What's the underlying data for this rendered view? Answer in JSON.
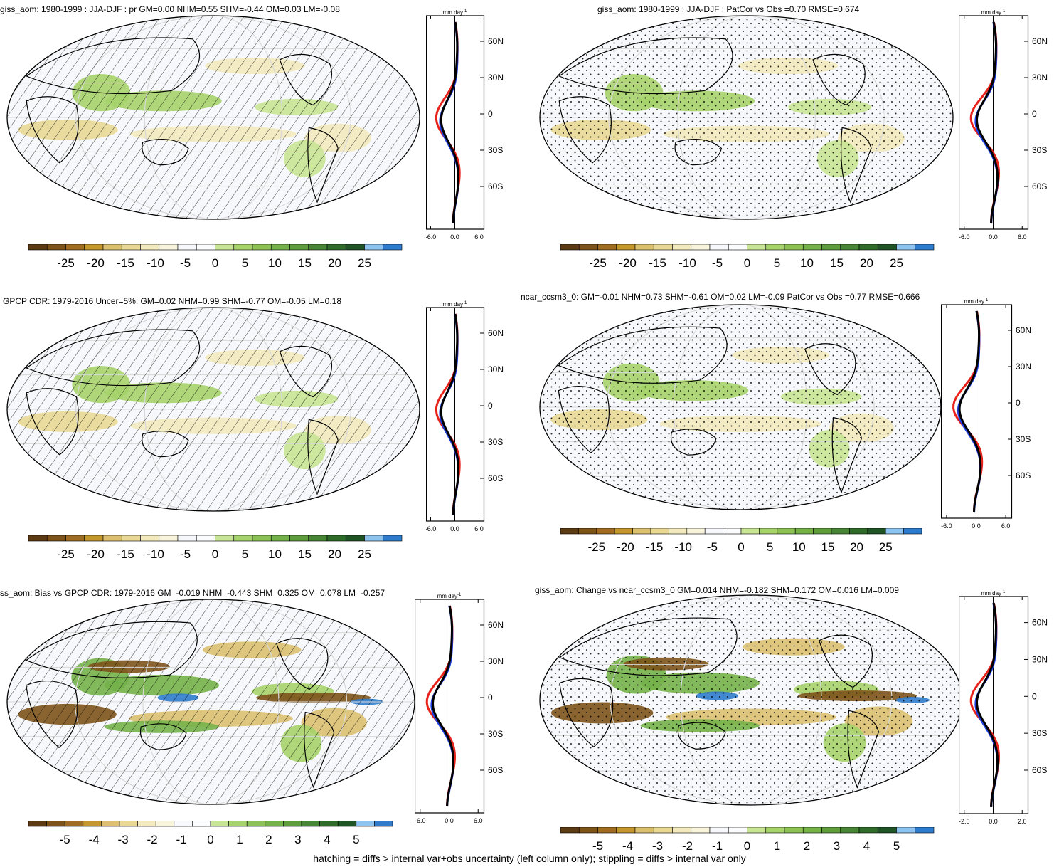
{
  "footer": "hatching = diffs > internal var+obs uncertainty (left column only); stippling = diffs > internal var only",
  "palette": [
    "#5c3a12",
    "#7d5319",
    "#a06c23",
    "#c4962e",
    "#dcc070",
    "#e8d894",
    "#f2e9bc",
    "#f8f4dc",
    "#f7f8fb",
    "#fbfcfd",
    "#c8e495",
    "#a6d36b",
    "#8cc255",
    "#74b149",
    "#5e9d3c",
    "#478634",
    "#2f6c2a",
    "#1f5424",
    "#8cc3ef",
    "#2f7ccc"
  ],
  "units": "mm day",
  "units_sup": "-1",
  "panels": [
    {
      "title": "giss_aom: 1980-1999 : JJA-DJF : pr GM=0.00 NHM=0.55 SHM=-0.44 OM=0.03 LM=-0.08",
      "pattern": "hatch",
      "cb_labels": [
        "-25",
        "-20",
        "-15",
        "-10",
        "-5",
        "0",
        "5",
        "10",
        "15",
        "20",
        "25"
      ],
      "zx_ticks": [
        "-6.0",
        "0.0",
        "6.0"
      ],
      "lat_ticks": [
        "60N",
        "30N",
        "0",
        "30S",
        "60S"
      ]
    },
    {
      "title": "giss_aom: 1980-1999 : JJA-DJF : PatCor vs Obs =0.70 RMSE=0.674",
      "pattern": "stipple",
      "cb_labels": [
        "-25",
        "-20",
        "-15",
        "-10",
        "-5",
        "0",
        "5",
        "10",
        "15",
        "20",
        "25"
      ],
      "zx_ticks": [
        "-6.0",
        "0.0",
        "6.0"
      ],
      "lat_ticks": [
        "60N",
        "30N",
        "0",
        "30S",
        "60S"
      ]
    },
    {
      "title": "GPCP CDR: 1979-2016 Uncer=5%: GM=0.02 NHM=0.99 SHM=-0.77 OM=-0.05 LM=0.18",
      "pattern": "hatch",
      "cb_labels": [
        "-25",
        "-20",
        "-15",
        "-10",
        "-5",
        "0",
        "5",
        "10",
        "15",
        "20",
        "25"
      ],
      "zx_ticks": [
        "-6.0",
        "0.0",
        "6.0"
      ],
      "lat_ticks": [
        "60N",
        "30N",
        "0",
        "30S",
        "60S"
      ]
    },
    {
      "title": "ncar_ccsm3_0: GM=-0.01 NHM=0.73 SHM=-0.61 OM=0.02 LM=-0.09 PatCor vs Obs =0.77 RMSE=0.666",
      "pattern": "stipple",
      "cb_labels": [
        "-25",
        "-20",
        "-15",
        "-10",
        "-5",
        "0",
        "5",
        "10",
        "15",
        "20",
        "25"
      ],
      "zx_ticks": [
        "-6.0",
        "0.0",
        "6.0"
      ],
      "lat_ticks": [
        "60N",
        "30N",
        "0",
        "30S",
        "60S"
      ]
    },
    {
      "title": "ss_aom: Bias vs GPCP CDR: 1979-2016 GM=-0.019 NHM=-0.443 SHM=0.325 OM=0.078 LM=-0.257",
      "pattern": "hatch",
      "cb_labels": [
        "-5",
        "-4",
        "-3",
        "-2",
        "-1",
        "0",
        "1",
        "2",
        "3",
        "4",
        "5"
      ],
      "zx_ticks": [
        "-6.0",
        "0.0",
        "6.0"
      ],
      "lat_ticks": [
        "60N",
        "30N",
        "0",
        "30S",
        "60S"
      ]
    },
    {
      "title": "giss_aom: Change vs ncar_ccsm3_0 GM=0.014 NHM=-0.182 SHM=0.172 OM=0.016 LM=0.009",
      "pattern": "stipple",
      "cb_labels": [
        "-5",
        "-4",
        "-3",
        "-2",
        "-1",
        "0",
        "1",
        "2",
        "3",
        "4",
        "5"
      ],
      "zx_ticks": [
        "-2.0",
        "0.0",
        "2.0"
      ],
      "lat_ticks": [
        "60N",
        "30N",
        "0",
        "30S",
        "60S"
      ]
    }
  ]
}
